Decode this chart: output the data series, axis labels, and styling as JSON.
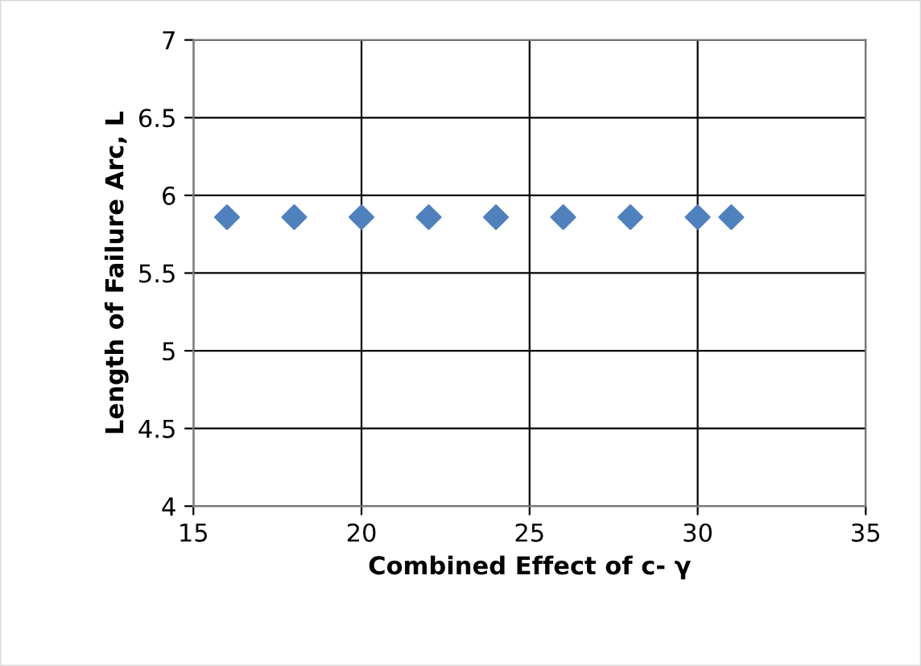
{
  "chart_data": {
    "type": "scatter",
    "xlabel": "Combined Effect of c- γ",
    "ylabel": "Length of Failure Arc, L",
    "x": [
      16,
      18,
      20,
      22,
      24,
      26,
      28,
      30,
      31
    ],
    "series": [
      {
        "color": "#4f81bd",
        "values": [
          5.86,
          5.86,
          5.86,
          5.86,
          5.86,
          5.86,
          5.86,
          5.86,
          5.86
        ]
      }
    ],
    "xlim": [
      15,
      35
    ],
    "xticks": [
      15,
      20,
      25,
      30,
      35
    ],
    "ylim": [
      4,
      7
    ],
    "yticks": [
      4,
      4.5,
      5,
      5.5,
      6,
      6.5,
      7
    ],
    "grid": true,
    "marker": "diamond",
    "legend": false
  }
}
